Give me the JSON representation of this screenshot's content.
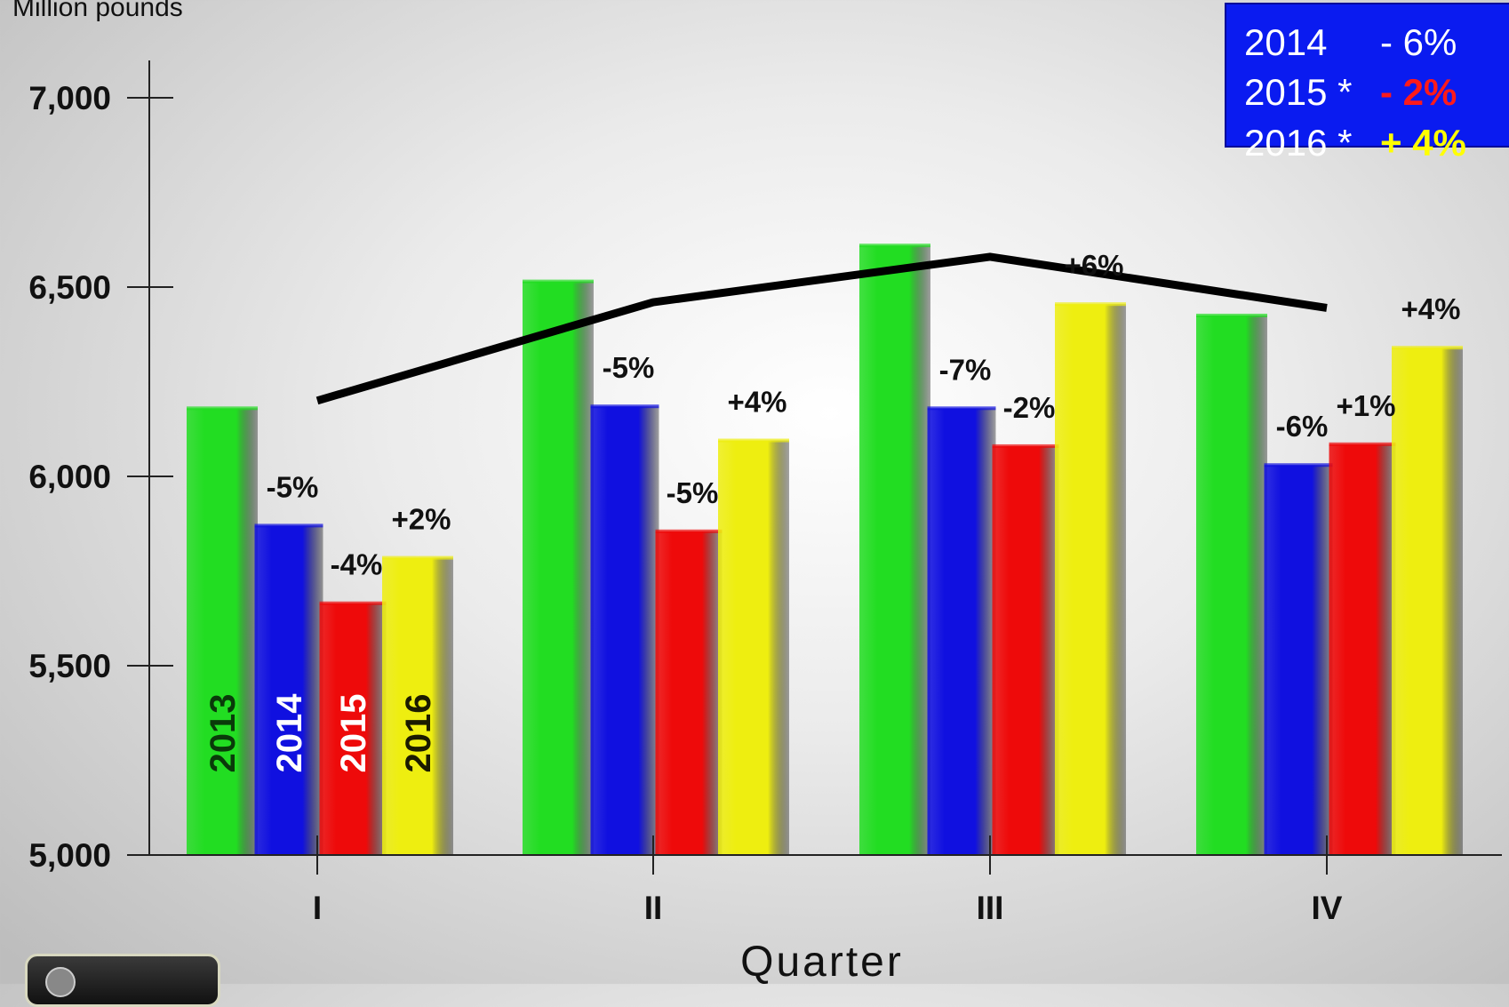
{
  "chart_data": {
    "type": "bar",
    "ylabel": "Million pounds",
    "xlabel": "Quarter",
    "ylim": [
      5000,
      7000
    ],
    "yticks": [
      5000,
      5500,
      6000,
      6500,
      7000
    ],
    "ytick_labels": [
      "5,000",
      "5,500",
      "6,000",
      "6,500",
      "7,000"
    ],
    "categories": [
      "I",
      "II",
      "III",
      "IV"
    ],
    "series": [
      {
        "name": "2013",
        "color": "#22dd22",
        "label_color": "#0a3a0a",
        "values": [
          6180,
          6515,
          6610,
          6425
        ],
        "changes": [
          "",
          "",
          "",
          ""
        ]
      },
      {
        "name": "2014",
        "color": "#1010e0",
        "label_color": "#ffffff",
        "values": [
          5870,
          6185,
          6180,
          6030
        ],
        "changes": [
          "-5%",
          "-5%",
          "-7%",
          "-6%"
        ]
      },
      {
        "name": "2015",
        "color": "#ee0a0a",
        "label_color": "#ffffff",
        "values": [
          5665,
          5855,
          6080,
          6085
        ],
        "changes": [
          "-4%",
          "-5%",
          "-2%",
          "+1%"
        ]
      },
      {
        "name": "2016",
        "color": "#eeee10",
        "label_color": "#1a1a00",
        "values": [
          5785,
          6095,
          6455,
          6340
        ],
        "changes": [
          "+2%",
          "+4%",
          "+6%",
          "+4%"
        ]
      }
    ],
    "line": {
      "values": [
        6200,
        6460,
        6580,
        6445
      ],
      "color": "#000000"
    },
    "legend": {
      "placement": "top-right",
      "background": "#0a1bf0",
      "rows": [
        {
          "year": "2014",
          "value": "- 6%",
          "value_color": "#ffffff",
          "bold": false
        },
        {
          "year": "2015 *",
          "value": "- 2%",
          "value_color": "#ff1a1a",
          "bold": true
        },
        {
          "year": "2016 *",
          "value": "+ 4%",
          "value_color": "#ffff00",
          "bold": true
        }
      ]
    }
  }
}
